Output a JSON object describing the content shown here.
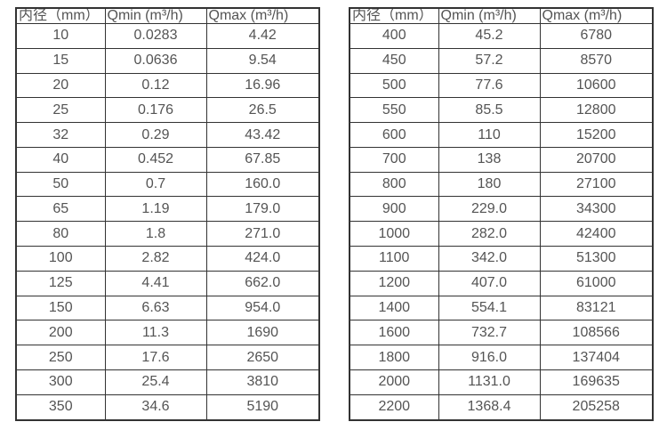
{
  "page": {
    "background_color": "#ffffff",
    "border_color": "#333333",
    "text_color": "#545454",
    "description_units": "m³/h"
  },
  "tables": [
    {
      "name": "flow-range-table-small-diameters",
      "columns": [
        "内径（mm）",
        "Qmin (m³/h)",
        "Qmax (m³/h)"
      ],
      "rows": [
        [
          "10",
          "0.0283",
          "4.42"
        ],
        [
          "15",
          "0.0636",
          "9.54"
        ],
        [
          "20",
          "0.12",
          "16.96"
        ],
        [
          "25",
          "0.176",
          "26.5"
        ],
        [
          "32",
          "0.29",
          "43.42"
        ],
        [
          "40",
          "0.452",
          "67.85"
        ],
        [
          "50",
          "0.7",
          "160.0"
        ],
        [
          "65",
          "1.19",
          "179.0"
        ],
        [
          "80",
          "1.8",
          "271.0"
        ],
        [
          "100",
          "2.82",
          "424.0"
        ],
        [
          "125",
          "4.41",
          "662.0"
        ],
        [
          "150",
          "6.63",
          "954.0"
        ],
        [
          "200",
          "11.3",
          "1690"
        ],
        [
          "250",
          "17.6",
          "2650"
        ],
        [
          "300",
          "25.4",
          "3810"
        ],
        [
          "350",
          "34.6",
          "5190"
        ]
      ]
    },
    {
      "name": "flow-range-table-large-diameters",
      "columns": [
        "内径（mm）",
        "Qmin (m³/h)",
        "Qmax (m³/h)"
      ],
      "rows": [
        [
          "400",
          "45.2",
          "6780"
        ],
        [
          "450",
          "57.2",
          "8570"
        ],
        [
          "500",
          "77.6",
          "10600"
        ],
        [
          "550",
          "85.5",
          "12800"
        ],
        [
          "600",
          "110",
          "15200"
        ],
        [
          "700",
          "138",
          "20700"
        ],
        [
          "800",
          "180",
          "27100"
        ],
        [
          "900",
          "229.0",
          "34300"
        ],
        [
          "1000",
          "282.0",
          "42400"
        ],
        [
          "1100",
          "342.0",
          "51300"
        ],
        [
          "1200",
          "407.0",
          "61000"
        ],
        [
          "1400",
          "554.1",
          "83121"
        ],
        [
          "1600",
          "732.7",
          "108566"
        ],
        [
          "1800",
          "916.0",
          "137404"
        ],
        [
          "2000",
          "1131.0",
          "169635"
        ],
        [
          "2200",
          "1368.4",
          "205258"
        ]
      ]
    }
  ]
}
